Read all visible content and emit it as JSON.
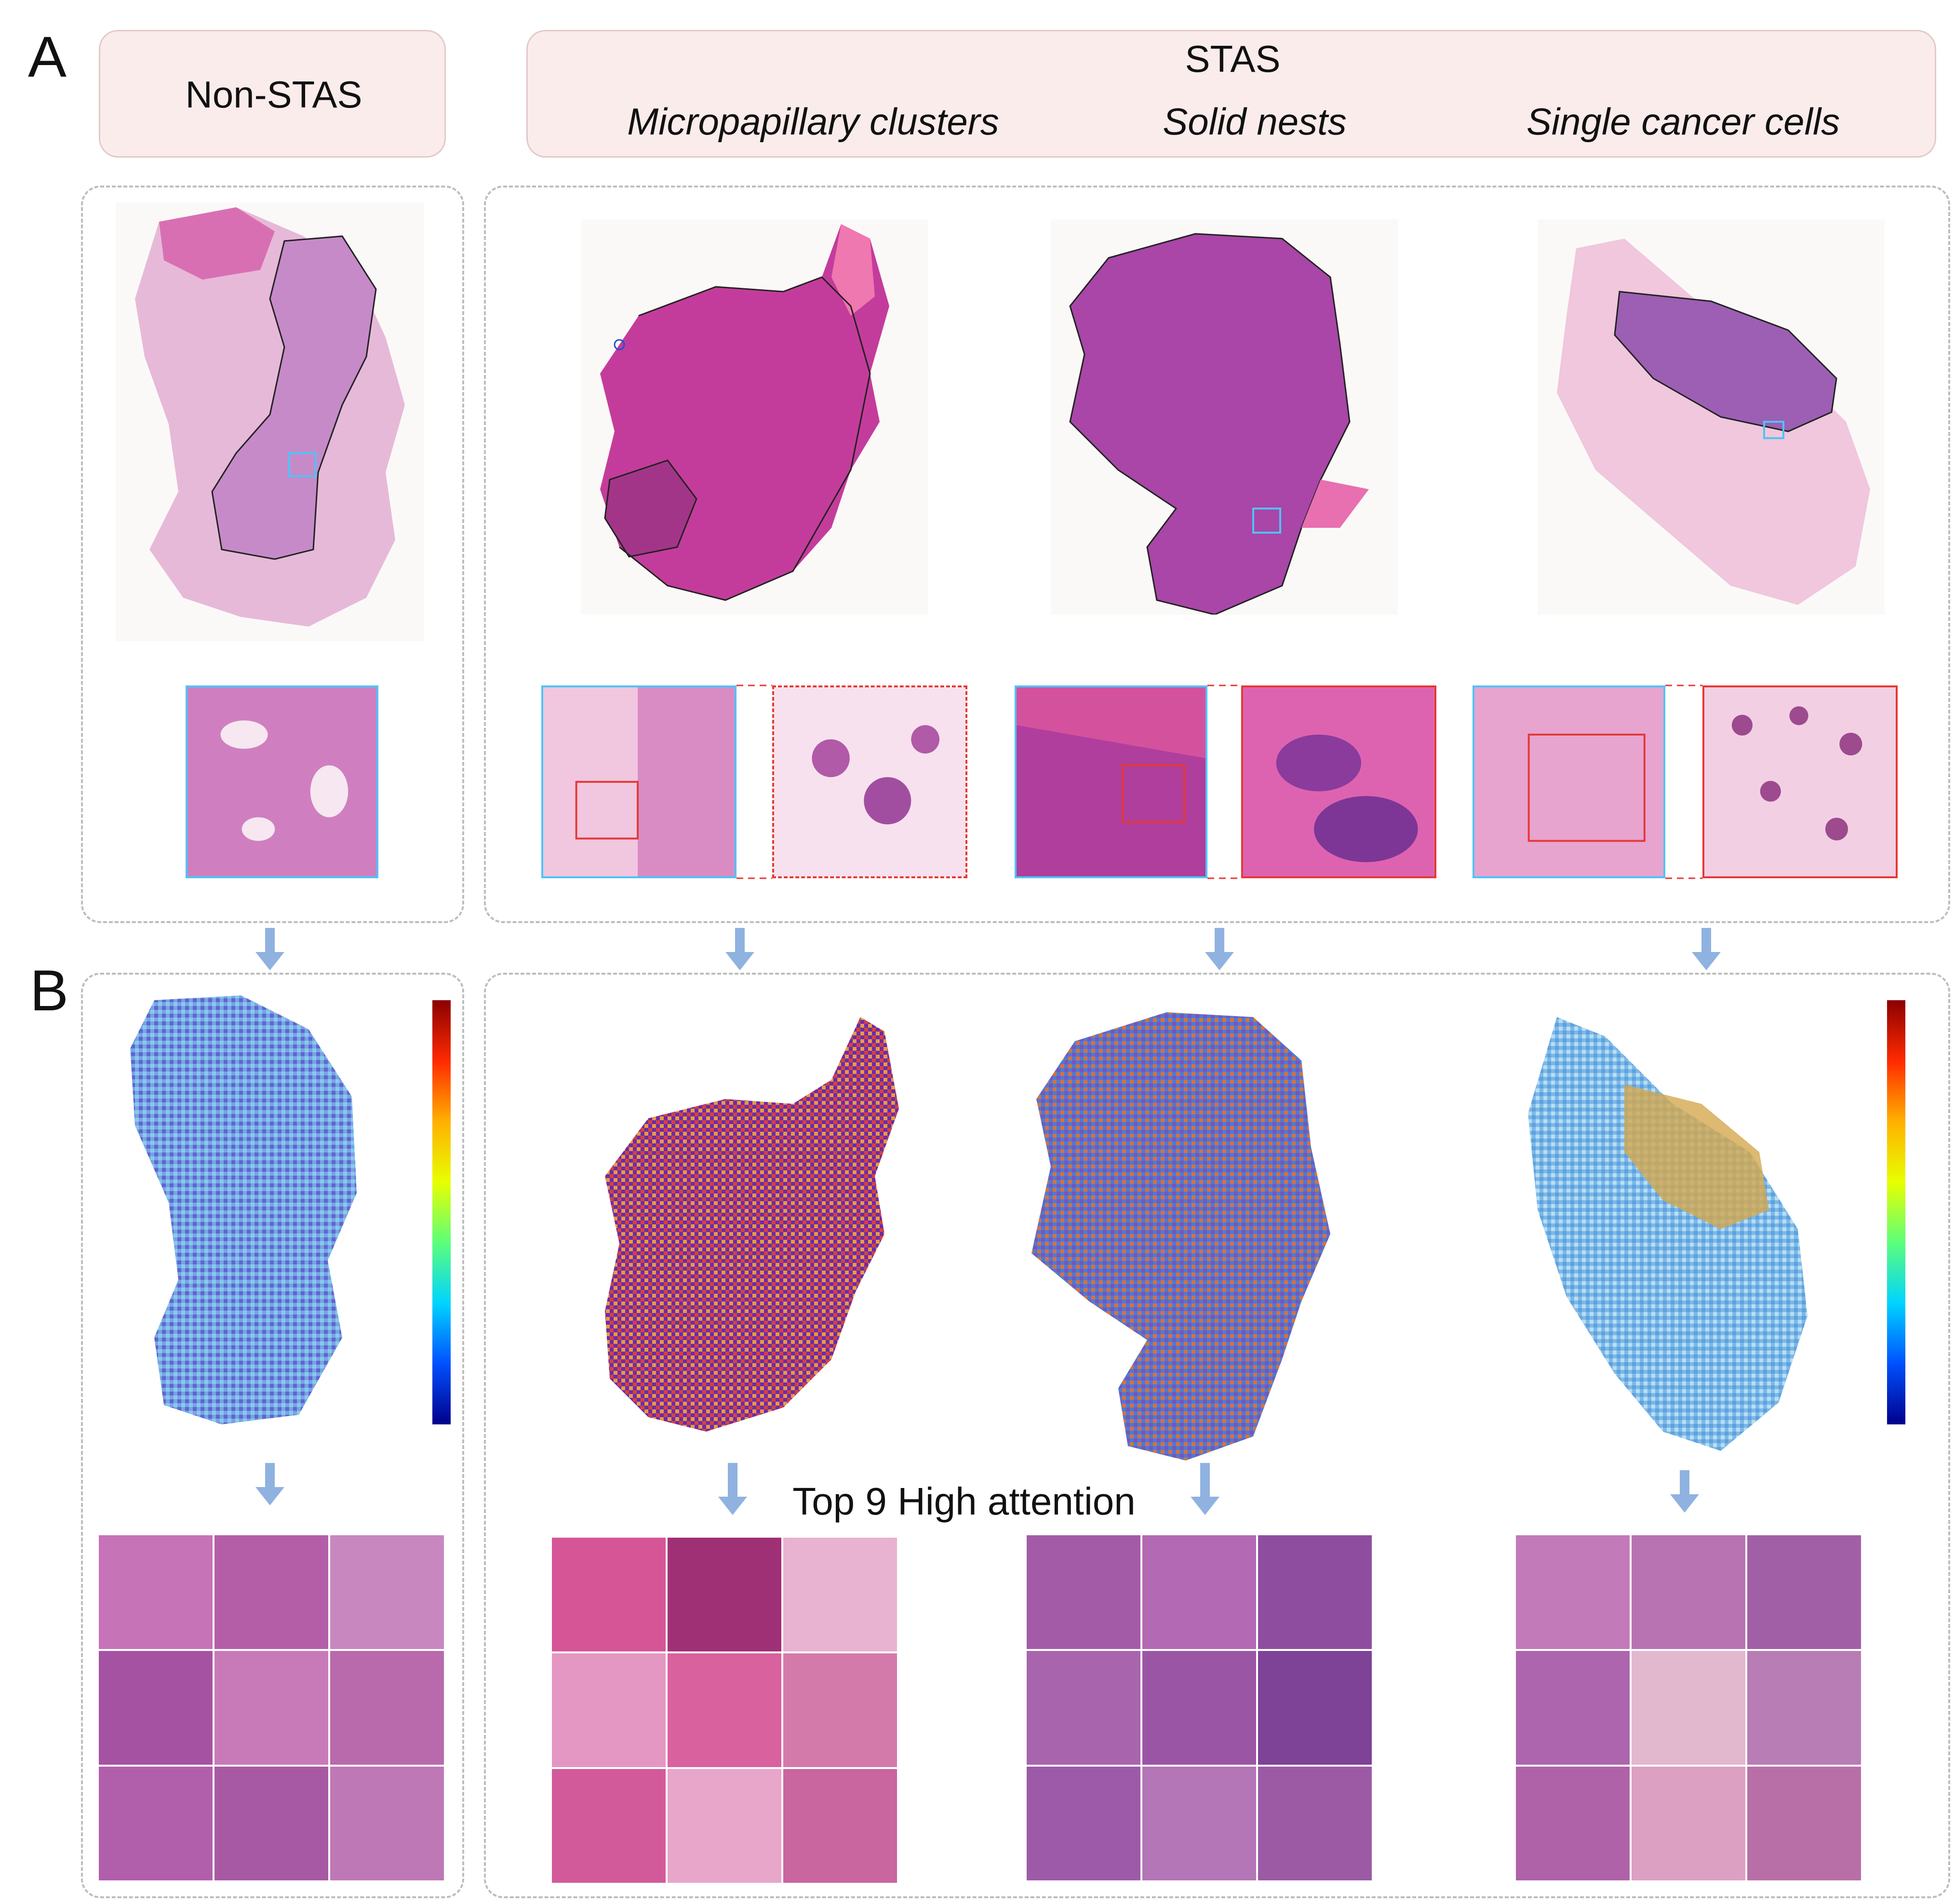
{
  "panel_a": {
    "letter": "A",
    "non_stas_header": "Non-STAS",
    "stas_header": "STAS",
    "subtypes": [
      "Micropapillary clusters",
      "Solid nests",
      "Single cancer cells"
    ]
  },
  "panel_b": {
    "letter": "B",
    "caption": "Top 9 High attention"
  },
  "colors": {
    "header_fill": "#fbecec",
    "header_border": "#e2c9c9",
    "dashed_border": "#bdbdbd",
    "arrow": "#8fb2e0",
    "tissue_pink": "#d65bb0",
    "tissue_purple": "#8e3f9d",
    "zoom_red": "#e53935",
    "zoom_cyan": "#4fc3f7"
  }
}
